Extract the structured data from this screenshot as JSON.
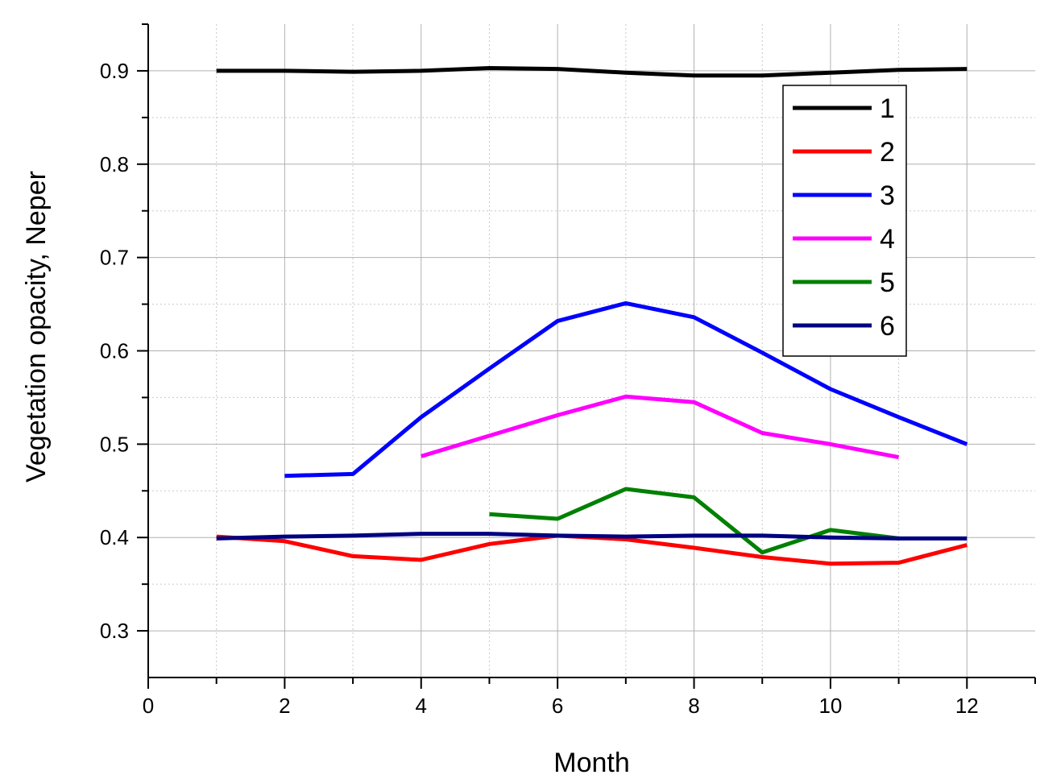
{
  "chart_data": {
    "type": "line",
    "xlabel": "Month",
    "ylabel": "Vegetation opacity, Neper",
    "xlim": [
      0,
      13
    ],
    "ylim": [
      0.25,
      0.95
    ],
    "xticks": [
      0,
      2,
      4,
      6,
      8,
      10,
      12
    ],
    "yticks": [
      0.3,
      0.4,
      0.5,
      0.6,
      0.7,
      0.8,
      0.9
    ],
    "xtick_labels": [
      "0",
      "2",
      "4",
      "6",
      "8",
      "10",
      "12"
    ],
    "ytick_labels": [
      "0.3",
      "0.4",
      "0.5",
      "0.6",
      "0.7",
      "0.8",
      "0.9"
    ],
    "grid": true,
    "legend_position": "top-right",
    "series": [
      {
        "name": "1",
        "color": "#000000",
        "x": [
          1,
          2,
          3,
          4,
          5,
          6,
          7,
          8,
          9,
          10,
          11,
          12
        ],
        "y": [
          0.9,
          0.9,
          0.899,
          0.9,
          0.903,
          0.902,
          0.898,
          0.895,
          0.895,
          0.898,
          0.901,
          0.902
        ]
      },
      {
        "name": "2",
        "color": "#ff0000",
        "x": [
          1,
          2,
          3,
          4,
          5,
          6,
          7,
          8,
          9,
          10,
          11,
          12
        ],
        "y": [
          0.401,
          0.396,
          0.38,
          0.376,
          0.393,
          0.402,
          0.398,
          0.389,
          0.379,
          0.372,
          0.373,
          0.392
        ]
      },
      {
        "name": "3",
        "color": "#0000ff",
        "x": [
          2,
          3,
          4,
          5,
          6,
          7,
          8,
          9,
          10,
          11,
          12
        ],
        "y": [
          0.466,
          0.468,
          0.529,
          0.581,
          0.632,
          0.651,
          0.636,
          0.598,
          0.559,
          0.529,
          0.5
        ]
      },
      {
        "name": "4",
        "color": "#ff00ff",
        "x": [
          4,
          5,
          6,
          7,
          8,
          9,
          10,
          11
        ],
        "y": [
          0.487,
          0.509,
          0.531,
          0.551,
          0.545,
          0.512,
          0.5,
          0.486
        ]
      },
      {
        "name": "5",
        "color": "#008000",
        "x": [
          5,
          6,
          7,
          8,
          9,
          10,
          11
        ],
        "y": [
          0.425,
          0.42,
          0.452,
          0.443,
          0.384,
          0.408,
          0.399
        ]
      },
      {
        "name": "6",
        "color": "#000080",
        "x": [
          1,
          2,
          3,
          4,
          5,
          6,
          7,
          8,
          9,
          10,
          11,
          12
        ],
        "y": [
          0.399,
          0.401,
          0.402,
          0.404,
          0.404,
          0.402,
          0.401,
          0.402,
          0.402,
          0.4,
          0.399,
          0.399
        ]
      }
    ]
  }
}
